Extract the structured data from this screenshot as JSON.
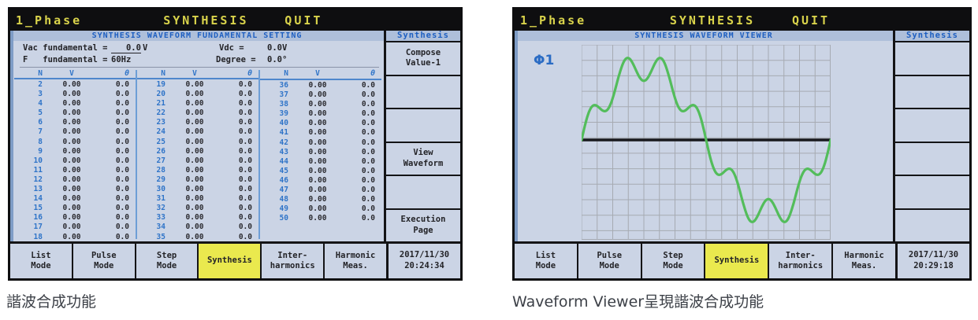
{
  "colors": {
    "titlebar_bg": "#0e0e10",
    "titlebar_text": "#d9d34b",
    "content_bg": "#cbd4e5",
    "band_bg": "#aebfda",
    "band_text": "#1e5fc1",
    "accent_blue": "#2f74c8",
    "value_text": "#2b2b30",
    "group_divider": "#6d9ed6",
    "active_tab_bg": "#eae94e",
    "wave_green": "#53bd5b",
    "grid_line": "#a6aab2",
    "zero_line": "#18181c",
    "left_strip": "#7e9cc6"
  },
  "mode_tabs": [
    "List\nMode",
    "Pulse\nMode",
    "Step\nMode",
    "Synthesis",
    "Inter-\nharmonics",
    "Harmonic\nMeas."
  ],
  "screens": [
    {
      "titlebar": {
        "phase": "1_Phase",
        "title": "SYNTHESIS",
        "quit": "QUIT"
      },
      "band": "SYNTHESIS WAVEFORM FUNDAMENTAL SETTING",
      "settings": {
        "vac_label": "Vac fundamental =",
        "vac_value": "   0.0",
        "vac_unit": "V",
        "vdc_label": "Vdc =",
        "vdc_value": "0.0V",
        "f_label": "F   fundamental =",
        "f_value": "60Hz",
        "degree_label": "Degree =",
        "degree_value": "0.0°"
      },
      "table": {
        "headers": [
          "N",
          "V",
          "θ"
        ],
        "groups": [
          [
            2,
            3,
            4,
            5,
            6,
            7,
            8,
            9,
            10,
            11,
            12,
            13,
            14,
            15,
            16,
            17,
            18
          ],
          [
            19,
            20,
            21,
            22,
            23,
            24,
            25,
            26,
            27,
            28,
            29,
            30,
            31,
            32,
            33,
            34,
            35
          ],
          [
            36,
            37,
            38,
            39,
            40,
            41,
            42,
            43,
            44,
            45,
            46,
            47,
            48,
            49,
            50
          ]
        ],
        "v_default": "0.00",
        "theta_default": "0.0"
      },
      "softkeys": {
        "header": "Synthesis",
        "buttons": [
          "Compose\nValue-1",
          "",
          "",
          "View\nWaveform",
          "",
          "Execution\nPage"
        ]
      },
      "active_tab": 3,
      "clock": {
        "date": "2017/11/30",
        "time": "20:24:34"
      },
      "caption": "諧波合成功能"
    },
    {
      "titlebar": {
        "phase": "1_Phase",
        "title": "SYNTHESIS",
        "quit": "QUIT"
      },
      "band": "SYNTHESIS WAVEFORM VIEWER",
      "viewer": {
        "phase_label": "Φ1",
        "waveform": {
          "type": "line",
          "cycles": 1,
          "harmonics": [
            {
              "n": 1,
              "amplitude": 1.0,
              "phase_deg": 0
            },
            {
              "n": 7,
              "amplitude": 0.2,
              "phase_deg": 0
            }
          ],
          "grid_cols": 16,
          "grid_rows": 13
        }
      },
      "softkeys": {
        "header": "Synthesis",
        "buttons": [
          "",
          "",
          "",
          "",
          "",
          ""
        ]
      },
      "active_tab": 3,
      "clock": {
        "date": "2017/11/30",
        "time": "20:29:18"
      },
      "caption": "Waveform Viewer呈現諧波合成功能"
    }
  ]
}
